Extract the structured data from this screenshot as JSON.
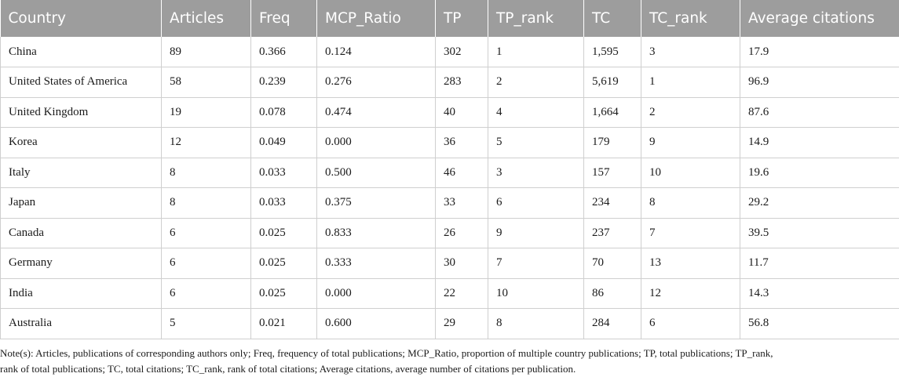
{
  "table": {
    "columns": [
      "Country",
      "Articles",
      "Freq",
      "MCP_Ratio",
      "TP",
      "TP_rank",
      "TC",
      "TC_rank",
      "Average citations"
    ],
    "rows": [
      [
        "China",
        "89",
        "0.366",
        "0.124",
        "302",
        "1",
        "1,595",
        "3",
        "17.9"
      ],
      [
        "United States of America",
        "58",
        "0.239",
        "0.276",
        "283",
        "2",
        "5,619",
        "1",
        "96.9"
      ],
      [
        "United Kingdom",
        "19",
        "0.078",
        "0.474",
        "40",
        "4",
        "1,664",
        "2",
        "87.6"
      ],
      [
        "Korea",
        "12",
        "0.049",
        "0.000",
        "36",
        "5",
        "179",
        "9",
        "14.9"
      ],
      [
        "Italy",
        "8",
        "0.033",
        "0.500",
        "46",
        "3",
        "157",
        "10",
        "19.6"
      ],
      [
        "Japan",
        "8",
        "0.033",
        "0.375",
        "33",
        "6",
        "234",
        "8",
        "29.2"
      ],
      [
        "Canada",
        "6",
        "0.025",
        "0.833",
        "26",
        "9",
        "237",
        "7",
        "39.5"
      ],
      [
        "Germany",
        "6",
        "0.025",
        "0.333",
        "30",
        "7",
        "70",
        "13",
        "11.7"
      ],
      [
        "India",
        "6",
        "0.025",
        "0.000",
        "22",
        "10",
        "86",
        "12",
        "14.3"
      ],
      [
        "Australia",
        "5",
        "0.021",
        "0.600",
        "29",
        "8",
        "284",
        "6",
        "56.8"
      ]
    ]
  },
  "note": {
    "line1": "Note(s): Articles, publications of corresponding authors only; Freq, frequency of total publications; MCP_Ratio, proportion of multiple country publications; TP, total publications; TP_rank,",
    "line2": "rank of total publications; TC, total citations; TC_rank, rank of total citations; Average citations, average number of citations per publication."
  }
}
